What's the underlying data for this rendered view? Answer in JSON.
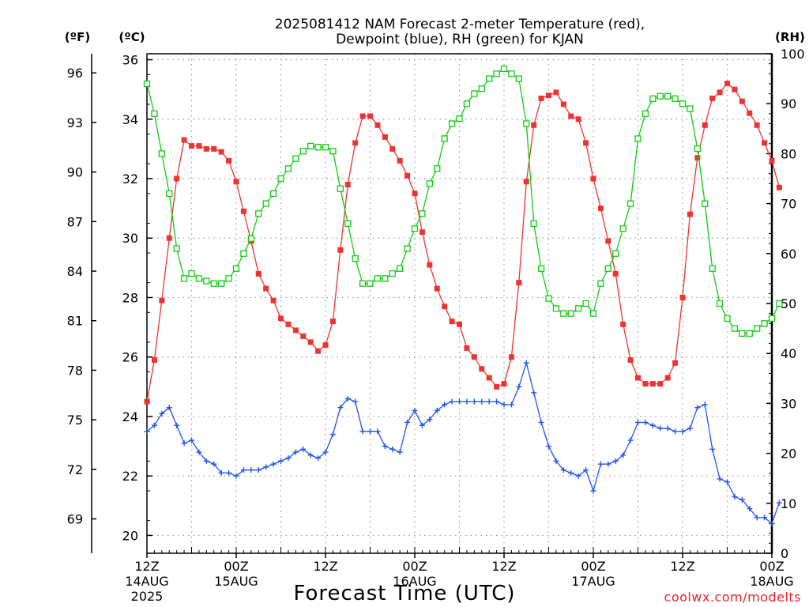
{
  "chart_data": {
    "type": "line",
    "title_line1": "2025081412 NAM Forecast 2-meter Temperature (red),",
    "title_line2": "Dewpoint (blue), RH (green) for KJAN",
    "xlabel": "Forecast Time (UTC)",
    "credit": "coolwx.com/modelts",
    "units": {
      "left_outer": "(ºF)",
      "left_inner": "(ºC)",
      "right": "(RH)"
    },
    "x_range_hours": [
      0,
      84
    ],
    "x_ticks": [
      {
        "hour": 0,
        "line1": "12Z",
        "line2": "14AUG",
        "line3": "2025"
      },
      {
        "hour": 12,
        "line1": "00Z",
        "line2": "15AUG",
        "line3": ""
      },
      {
        "hour": 24,
        "line1": "12Z",
        "line2": "",
        "line3": ""
      },
      {
        "hour": 36,
        "line1": "00Z",
        "line2": "16AUG",
        "line3": ""
      },
      {
        "hour": 48,
        "line1": "12Z",
        "line2": "",
        "line3": ""
      },
      {
        "hour": 60,
        "line1": "00Z",
        "line2": "17AUG",
        "line3": ""
      },
      {
        "hour": 72,
        "line1": "12Z",
        "line2": "",
        "line3": ""
      },
      {
        "hour": 84,
        "line1": "00Z",
        "line2": "18AUG",
        "line3": ""
      }
    ],
    "y_celsius": {
      "range": [
        19.4,
        36.2
      ],
      "ticks": [
        20,
        22,
        24,
        26,
        28,
        30,
        32,
        34,
        36
      ]
    },
    "y_fahrenheit": {
      "ticks": [
        69,
        72,
        75,
        78,
        81,
        84,
        87,
        90,
        93,
        96
      ]
    },
    "y_rh": {
      "range": [
        0,
        100
      ],
      "ticks": [
        0,
        10,
        20,
        30,
        40,
        50,
        60,
        70,
        80,
        90,
        100
      ]
    },
    "series": [
      {
        "name": "Temperature",
        "unit": "C",
        "color": "#ee3333",
        "marker": "filled-square",
        "values": [
          24.5,
          25.9,
          27.9,
          30.0,
          32.0,
          33.3,
          33.1,
          33.1,
          33.0,
          33.0,
          32.9,
          32.6,
          31.9,
          30.9,
          29.9,
          28.8,
          28.3,
          27.9,
          27.3,
          27.1,
          26.9,
          26.7,
          26.5,
          26.2,
          26.4,
          27.2,
          29.6,
          31.8,
          33.2,
          34.1,
          34.1,
          33.8,
          33.4,
          33.0,
          32.6,
          32.1,
          31.5,
          30.2,
          29.1,
          28.3,
          27.7,
          27.2,
          27.1,
          26.3,
          26.0,
          25.6,
          25.3,
          25.0,
          25.1,
          26.0,
          28.5,
          31.9,
          33.8,
          34.7,
          34.8,
          34.9,
          34.5,
          34.1,
          34.0,
          33.2,
          32.0,
          31.0,
          29.9,
          28.8,
          27.1,
          25.9,
          25.3,
          25.1,
          25.1,
          25.1,
          25.3,
          25.8,
          28.0,
          30.8,
          32.7,
          33.8,
          34.7,
          34.9,
          35.2,
          35.0,
          34.6,
          34.2,
          33.8,
          33.2,
          32.6,
          31.7
        ]
      },
      {
        "name": "Dewpoint",
        "unit": "C",
        "color": "#2255ee",
        "marker": "plus",
        "values": [
          23.5,
          23.7,
          24.1,
          24.3,
          23.7,
          23.1,
          23.2,
          22.8,
          22.5,
          22.4,
          22.1,
          22.1,
          22.0,
          22.2,
          22.2,
          22.2,
          22.3,
          22.4,
          22.5,
          22.6,
          22.8,
          22.9,
          22.7,
          22.6,
          22.8,
          23.4,
          24.3,
          24.6,
          24.5,
          23.5,
          23.5,
          23.5,
          23.0,
          22.9,
          22.8,
          23.8,
          24.2,
          23.7,
          23.9,
          24.2,
          24.4,
          24.5,
          24.5,
          24.5,
          24.5,
          24.5,
          24.5,
          24.5,
          24.4,
          24.4,
          25.0,
          25.8,
          24.8,
          23.8,
          23.0,
          22.5,
          22.2,
          22.1,
          22.0,
          22.2,
          21.5,
          22.4,
          22.4,
          22.5,
          22.7,
          23.2,
          23.8,
          23.8,
          23.7,
          23.6,
          23.6,
          23.5,
          23.5,
          23.6,
          24.3,
          24.4,
          22.9,
          21.9,
          21.8,
          21.3,
          21.2,
          20.9,
          20.6,
          20.6,
          20.4,
          21.1
        ]
      },
      {
        "name": "RH",
        "unit": "%",
        "color": "#11cc11",
        "marker": "open-square",
        "values": [
          94,
          88,
          80,
          72,
          61,
          55,
          56,
          55,
          54.5,
          54,
          54,
          55,
          57,
          60,
          63,
          68,
          70,
          72,
          75,
          77,
          79,
          80.5,
          81.5,
          81.3,
          81.3,
          80.5,
          73,
          66,
          59,
          54,
          54,
          55,
          55,
          56,
          57,
          61,
          65,
          68,
          74,
          77,
          83,
          86,
          87,
          90,
          92,
          93,
          95,
          96,
          97,
          96,
          95,
          86,
          66,
          57,
          51,
          49,
          48,
          48,
          49,
          50,
          48,
          54,
          57,
          60,
          65,
          70,
          83,
          88,
          91,
          91.5,
          91.5,
          91,
          90,
          89,
          81,
          70,
          57,
          50,
          47,
          45,
          44,
          44,
          45,
          46,
          47,
          50
        ]
      }
    ]
  }
}
